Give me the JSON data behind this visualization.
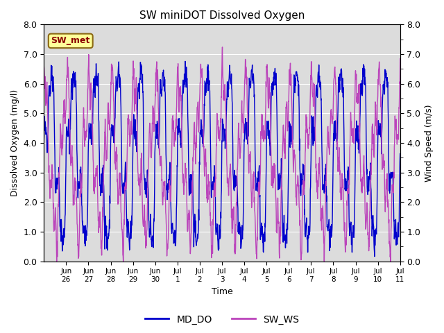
{
  "title": "SW miniDOT Dissolved Oxygen",
  "xlabel": "Time",
  "ylabel_left": "Dissolved Oxygen (mg/l)",
  "ylabel_right": "Wind Speed (m/s)",
  "annotation_text": "SW_met",
  "annotation_bg": "#FFFF99",
  "annotation_fg": "#8B0000",
  "annotation_edge": "#8B6914",
  "ylim": [
    0.0,
    8.0
  ],
  "yticks": [
    0.0,
    1.0,
    2.0,
    3.0,
    4.0,
    5.0,
    6.0,
    7.0,
    8.0
  ],
  "xtick_labels": [
    "Jun\n26",
    "Jun\n27",
    "Jun\n28",
    "Jun\n29",
    "Jun\n30",
    "Jul\n1",
    "Jul\n2",
    "Jul\n3",
    "Jul\n4",
    "Jul\n5",
    "Jul\n6",
    "Jul\n7",
    "Jul\n8",
    "Jul\n9",
    "Jul\n10",
    "Jul\n11"
  ],
  "md_do_color": "#0000CC",
  "sw_ws_color": "#BB44BB",
  "legend_md_do": "MD_DO",
  "legend_sw_ws": "SW_WS",
  "bg_color": "#DCDCDC",
  "linewidth": 1.0,
  "figsize": [
    6.4,
    4.8
  ],
  "dpi": 100
}
